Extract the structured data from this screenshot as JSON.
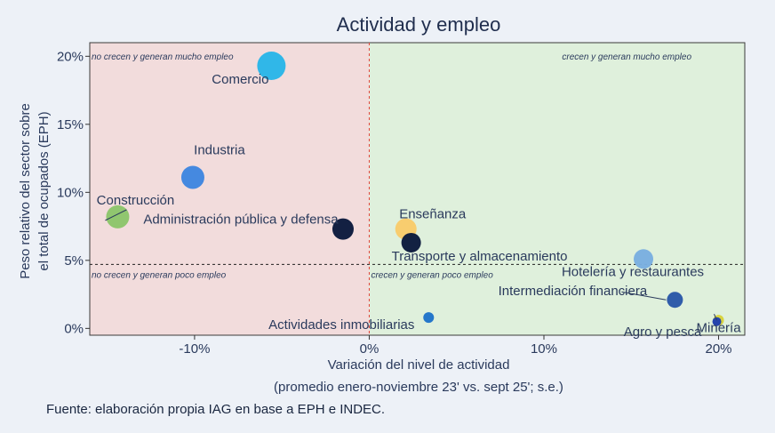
{
  "chart_data": {
    "type": "scatter",
    "title": "Actividad y empleo",
    "xlabel_line1": "Variación del nivel de actividad",
    "xlabel_line2": "(promedio enero-noviembre 23' vs. sept 25'; s.e.)",
    "ylabel_line1": "Peso relativo del sector sobre",
    "ylabel_line2": "el total de ocupados (EPH)",
    "xlim": [
      -16,
      21.5
    ],
    "ylim": [
      -0.5,
      21
    ],
    "x_ticks": [
      -10,
      0,
      10,
      20
    ],
    "x_tick_labels": [
      "-10%",
      "0%",
      "10%",
      "20%"
    ],
    "y_ticks": [
      0,
      5,
      10,
      15,
      20
    ],
    "y_tick_labels": [
      "0%",
      "5%",
      "10%",
      "15%",
      "20%"
    ],
    "vline_x": 0,
    "hline_y": 4.7,
    "quadrant_labels": {
      "top_left": "no crecen y generan mucho empleo",
      "top_right": "crecen y generan mucho empleo",
      "bottom_left": "no crecen y generan poco empleo",
      "bottom_right": "crecen y generan poco empleo"
    },
    "quadrant_colors": {
      "left": "#f2dcdc",
      "right": "#dff0dc"
    },
    "points": [
      {
        "label": "Comercio",
        "x": -5.6,
        "y": 19.3,
        "color": "#29b6e8"
      },
      {
        "label": "Industria",
        "x": -10.1,
        "y": 11.1,
        "color": "#3f86e0"
      },
      {
        "label": "Construcción",
        "x": -14.4,
        "y": 8.2,
        "color": "#8cc56b"
      },
      {
        "label": "Administración pública y defensa",
        "x": -1.5,
        "y": 7.3,
        "color": "#0b1a3d"
      },
      {
        "label": "Enseñanza",
        "x": 2.1,
        "y": 7.3,
        "color": "#f9cb6b"
      },
      {
        "label": "Transporte y almacenamiento",
        "x": 2.4,
        "y": 6.3,
        "color": "#0b1a3d"
      },
      {
        "label": "Hotelería y restaurantes",
        "x": 15.7,
        "y": 5.1,
        "color": "#7aaee0"
      },
      {
        "label": "Intermediación financiera",
        "x": 17.5,
        "y": 2.1,
        "color": "#2a58a8"
      },
      {
        "label": "Agro y pesca",
        "x": 20.0,
        "y": 0.6,
        "color": "#d8d23a"
      },
      {
        "label": "Minería",
        "x": 19.9,
        "y": 0.5,
        "color": "#1f3fb0"
      },
      {
        "label": "Actividades inmobiliarias",
        "x": 3.4,
        "y": 0.8,
        "color": "#1f73c9"
      }
    ]
  },
  "footer": {
    "source": "Fuente: elaboración propia IAG en base a EPH e INDEC."
  }
}
